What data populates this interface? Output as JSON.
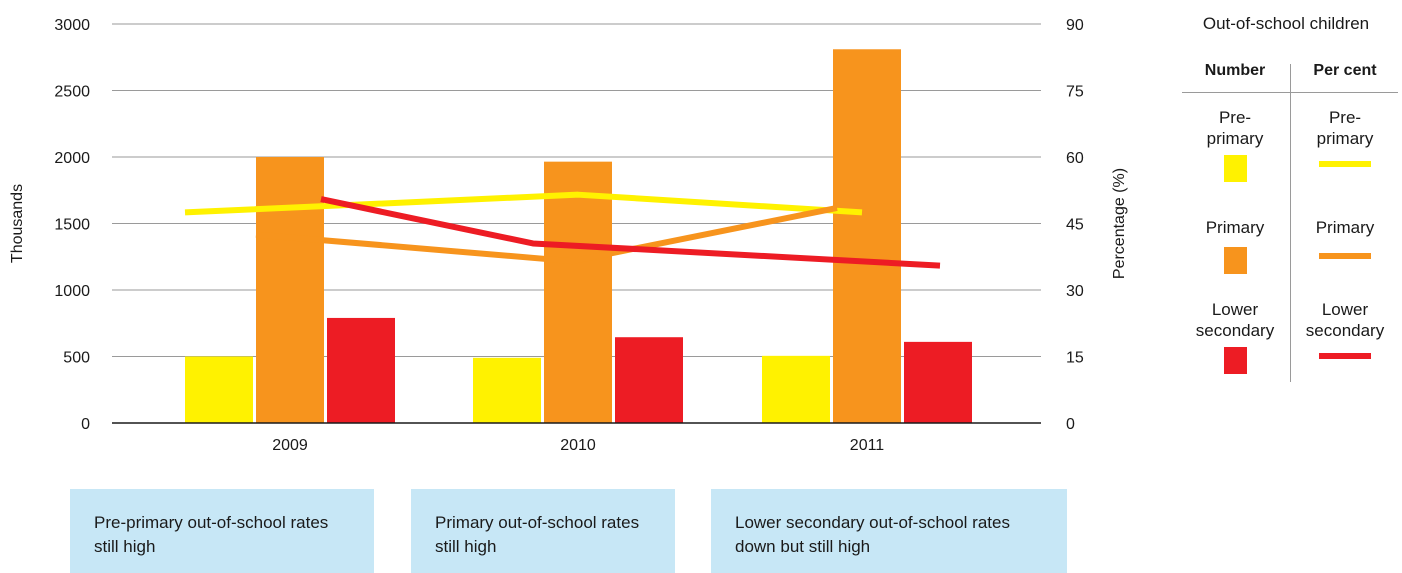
{
  "chart_data": {
    "type": "bar+line",
    "categories": [
      "2009",
      "2010",
      "2011"
    ],
    "bar_series": [
      {
        "name": "Pre-primary",
        "color": "#fff200",
        "values": [
          500,
          490,
          505
        ]
      },
      {
        "name": "Primary",
        "color": "#f7941d",
        "values": [
          2000,
          1965,
          2810
        ]
      },
      {
        "name": "Lower secondary",
        "color": "#ed1c24",
        "values": [
          790,
          645,
          610
        ]
      }
    ],
    "line_series": [
      {
        "name": "Pre-primary",
        "color": "#fff200",
        "values": [
          47.5,
          51.5,
          47.5
        ]
      },
      {
        "name": "Primary",
        "color": "#f7941d",
        "values": [
          42.5,
          36.5,
          48.5
        ]
      },
      {
        "name": "Lower secondary",
        "color": "#ed1c24",
        "values": [
          50.5,
          40.5,
          35.5
        ]
      }
    ],
    "y_left": {
      "label": "Thousands",
      "ticks": [
        "0",
        "500",
        "1000",
        "1500",
        "2000",
        "2500",
        "3000"
      ],
      "range": [
        0,
        3000
      ]
    },
    "y_right": {
      "label": "Percentage (%)",
      "ticks": [
        "0",
        "15",
        "30",
        "45",
        "60",
        "75",
        "90"
      ],
      "range": [
        0,
        90
      ]
    },
    "grid": true
  },
  "legend": {
    "title": "Out-of-school children",
    "number_header": "Number",
    "percent_header": "Per cent",
    "items": [
      "Pre-primary",
      "Primary",
      "Lower secondary"
    ]
  },
  "callouts": [
    "Pre-primary out-of-school rates still high",
    "Primary out-of-school rates still high",
    "Lower secondary out-of-school rates down but still high"
  ]
}
